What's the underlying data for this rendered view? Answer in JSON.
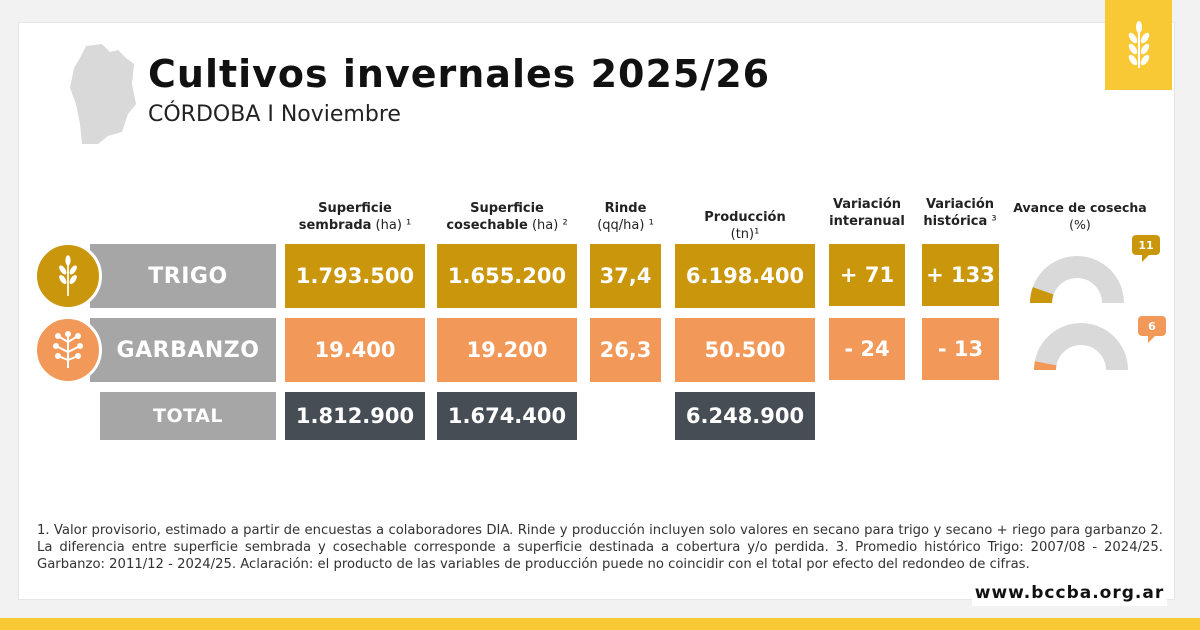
{
  "header": {
    "title": "Cultivos invernales 2025/26",
    "subtitle": "CÓRDOBA I Noviembre"
  },
  "columns": [
    {
      "l1": "Superficie",
      "l2": "sembrada",
      "unit": " (ha) ¹"
    },
    {
      "l1": "Superficie",
      "l2": "cosechable",
      "unit": " (ha) ²"
    },
    {
      "l1": "Rinde",
      "l2": "",
      "unit": "(qq/ha) ¹"
    },
    {
      "l1": "Producción",
      "l2": "",
      "unit": " (tn)¹"
    },
    {
      "l1": "Variación",
      "l2": "interanual",
      "unit": ""
    },
    {
      "l1": "Variación",
      "l2": "histórica",
      "unit": " ³"
    },
    {
      "l1": "Avance de cosecha",
      "l2": "",
      "unit": "(%)"
    }
  ],
  "rows": [
    {
      "crop": "TRIGO",
      "icon": "wheat-icon",
      "sembrada": "1.793.500",
      "cosechable": "1.655.200",
      "rinde": "37,4",
      "produccion": "6.198.400",
      "interanual": "+ 71",
      "historica": "+ 133",
      "avance": 11,
      "avance_label": "11",
      "color": "#C9960C"
    },
    {
      "crop": "GARBANZO",
      "icon": "chickpea-plant-icon",
      "sembrada": "19.400",
      "cosechable": "19.200",
      "rinde": "26,3",
      "produccion": "50.500",
      "interanual": "- 24",
      "historica": "- 13",
      "avance": 6,
      "avance_label": "6",
      "color": "#F2995A"
    }
  ],
  "total": {
    "label": "TOTAL",
    "sembrada": "1.812.900",
    "cosechable": "1.674.400",
    "produccion": "6.248.900"
  },
  "footnote": "1. Valor provisorio, estimado a partir de encuestas a colaboradores DIA. Rinde y producción incluyen solo valores en secano para trigo y secano + riego para garbanzo 2. La diferencia entre superficie sembrada y cosechable corresponde a superficie destinada a cobertura y/o perdida. 3. Promedio histórico Trigo: 2007/08 - 2024/25. Garbanzo: 2011/12 - 2024/25. Aclaración: el producto de las variables de producción puede no coincidir con el total por efecto del redondeo de cifras.",
  "website": "www.bccba.org.ar",
  "colors": {
    "trigo": "#C9960C",
    "garbanzo": "#F2995A",
    "total": "#474D55",
    "brand_yellow": "#F9C935",
    "gauge_track": "#D9D9D9"
  }
}
